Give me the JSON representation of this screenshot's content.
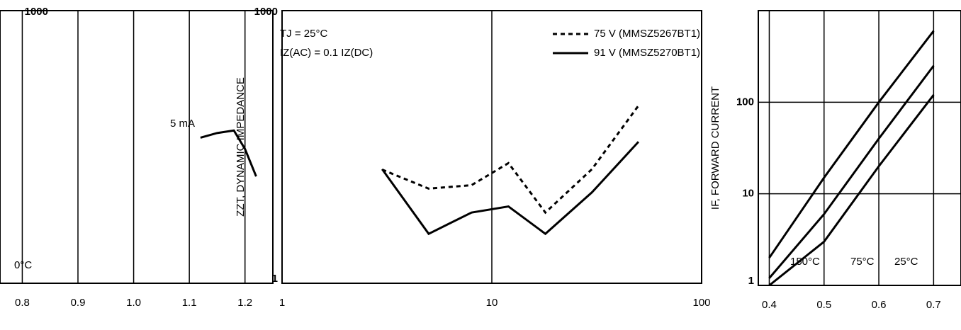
{
  "chart_data": [
    {
      "type": "line",
      "y_label": "ZZT, DYNAMIC IMPEDANCE",
      "annotations": [
        "5 mA",
        "0°C"
      ],
      "xlim": [
        0.76,
        1.25
      ],
      "xticks": [
        0.8,
        0.9,
        {
          "value": 1,
          "label": "1.0"
        },
        1.1,
        1.2
      ],
      "ylim": [
        1,
        1000
      ],
      "yticks": [
        1000
      ],
      "log_y": true,
      "grid": true,
      "x": [
        1.12,
        1.15,
        1.18,
        1.2,
        1.22
      ],
      "series": [
        {
          "color": "#000000",
          "dash": false,
          "values": [
            40,
            45,
            48,
            30,
            15
          ]
        }
      ]
    },
    {
      "type": "line",
      "annotations": [
        "TJ = 25°C",
        "IZ(AC) = 0.1 IZ(DC)"
      ],
      "xlim": [
        1,
        100
      ],
      "xticks": [
        1,
        10,
        100
      ],
      "log_x": true,
      "ylim": [
        1,
        1000
      ],
      "yticks": [
        1,
        1000
      ],
      "log_y": true,
      "grid": true,
      "x": [
        3,
        5,
        8,
        12,
        18,
        30,
        50
      ],
      "series": [
        {
          "name": "75 V (MMSZ5267BT1)",
          "color": "#000000",
          "dash": true,
          "values": [
            17.8,
            11,
            12,
            21,
            6,
            18,
            90
          ]
        },
        {
          "name": "91 V (MMSZ5270BT1)",
          "color": "#000000",
          "dash": false,
          "values": [
            18,
            3.5,
            6,
            7,
            3.5,
            10,
            36
          ]
        }
      ]
    },
    {
      "type": "line",
      "y_label": "IF, FORWARD CURRENT",
      "annotations": [
        "150°C",
        "75°C",
        "25°C"
      ],
      "xlim": [
        0.38,
        0.75
      ],
      "xticks": [
        0.4,
        0.5,
        0.6,
        0.7
      ],
      "ylim": [
        1,
        1000
      ],
      "yticks": [
        1,
        10,
        100
      ],
      "log_y": true,
      "grid": true,
      "x": [
        0.4,
        0.5,
        0.6,
        0.7
      ],
      "series": [
        {
          "color": "#000000",
          "dash": false,
          "values": [
            2,
            15,
            100,
            600
          ]
        },
        {
          "color": "#000000",
          "dash": false,
          "values": [
            1.2,
            6,
            40,
            250
          ]
        },
        {
          "color": "#000000",
          "dash": false,
          "values": [
            1,
            3,
            20,
            120
          ]
        }
      ]
    }
  ]
}
